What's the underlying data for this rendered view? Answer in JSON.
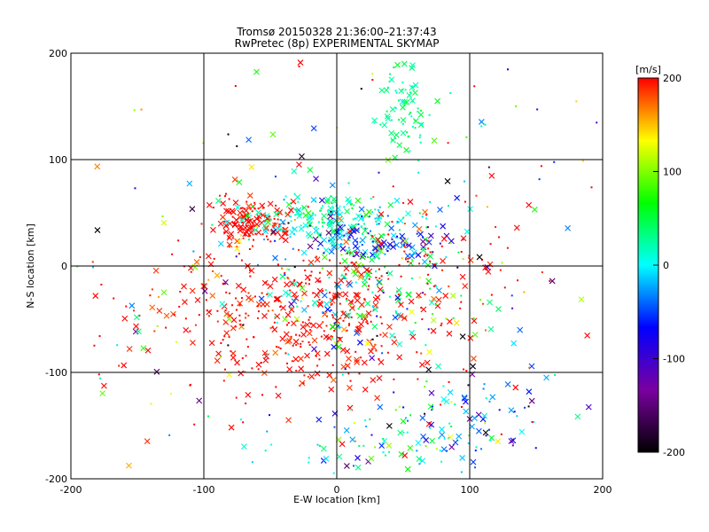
{
  "chart_data": {
    "type": "scatter",
    "title_lines": [
      "Tromsø 20150328 21:36:00–21:37:43",
      "RwPretec (8p) EXPERIMENTAL SKYMAP"
    ],
    "xlabel": "E-W location [km]",
    "ylabel": "N-S location [km]",
    "xlim": [
      -200,
      200
    ],
    "ylim": [
      -200,
      200
    ],
    "x_ticks": [
      "-200",
      "-100",
      "0",
      "100",
      "200"
    ],
    "y_ticks": [
      "-200",
      "-100",
      "0",
      "100",
      "200"
    ],
    "grid": true,
    "color_scale": {
      "label": "[m/s]",
      "min": -200,
      "max": 200,
      "ticks": [
        "200",
        "100",
        "0",
        "-100",
        "-200"
      ],
      "stops": [
        "#000000",
        "#7a00a0",
        "#0000ff",
        "#00ffff",
        "#00ff00",
        "#ffff00",
        "#ff0000"
      ]
    },
    "marker_types": [
      "x",
      "dot"
    ],
    "clusters": [
      {
        "x": -65,
        "y": 42,
        "sx": 15,
        "sy": 9,
        "n": 130,
        "v": 200,
        "vs": 10
      },
      {
        "x": -10,
        "y": 45,
        "sx": 32,
        "sy": 11,
        "n": 190,
        "v": 15,
        "vs": 30
      },
      {
        "x": 30,
        "y": 22,
        "sx": 30,
        "sy": 9,
        "n": 110,
        "v": -60,
        "vs": 60
      },
      {
        "x": 52,
        "y": 145,
        "sx": 10,
        "sy": 22,
        "n": 80,
        "v": 30,
        "vs": 15
      },
      {
        "x": -30,
        "y": -50,
        "sx": 60,
        "sy": 32,
        "n": 400,
        "v": 200,
        "vs": 10
      },
      {
        "x": 20,
        "y": -30,
        "sx": 40,
        "sy": 25,
        "n": 130,
        "v": 30,
        "vs": 60
      },
      {
        "x": 60,
        "y": 0,
        "sx": 45,
        "sy": 22,
        "n": 80,
        "v": 200,
        "vs": 10
      },
      {
        "x": 100,
        "y": -140,
        "sx": 30,
        "sy": 25,
        "n": 90,
        "v": -40,
        "vs": 70
      },
      {
        "x": 40,
        "y": -165,
        "sx": 40,
        "sy": 18,
        "n": 60,
        "v": 20,
        "vs": 60
      },
      {
        "x": 0,
        "y": 0,
        "sx": 110,
        "sy": 110,
        "n": 300,
        "v": 80,
        "vs": 150
      }
    ]
  }
}
